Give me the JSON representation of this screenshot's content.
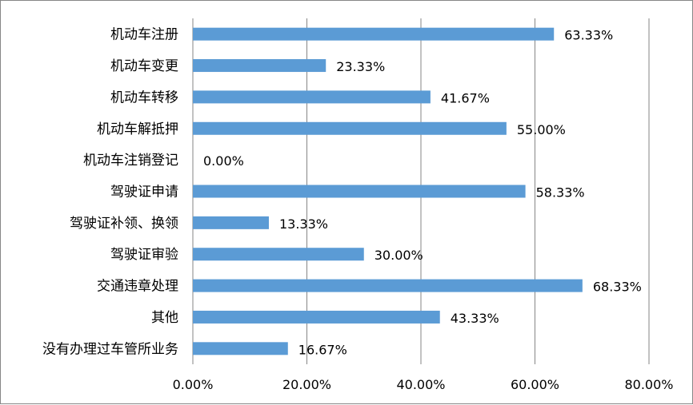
{
  "chart_data": {
    "type": "bar",
    "orientation": "horizontal",
    "categories": [
      "机动车注册",
      "机动车变更",
      "机动车转移",
      "机动车解抵押",
      "机动车注销登记",
      "驾驶证申请",
      "驾驶证补领、换领",
      "驾驶证审验",
      "交通违章处理",
      "其他",
      "没有办理过车管所业务"
    ],
    "values": [
      63.33,
      23.33,
      41.67,
      55.0,
      0.0,
      58.33,
      13.33,
      30.0,
      68.33,
      43.33,
      16.67
    ],
    "value_labels": [
      "63.33%",
      "23.33%",
      "41.67%",
      "55.00%",
      "0.00%",
      "58.33%",
      "13.33%",
      "30.00%",
      "68.33%",
      "43.33%",
      "16.67%"
    ],
    "x_ticks": [
      "0.00%",
      "20.00%",
      "40.00%",
      "60.00%",
      "80.00%"
    ],
    "xlim": [
      0,
      80
    ],
    "grid": "vertical",
    "legend": "none",
    "bar_color": "#5B9BD5",
    "grid_color": "#868686"
  }
}
